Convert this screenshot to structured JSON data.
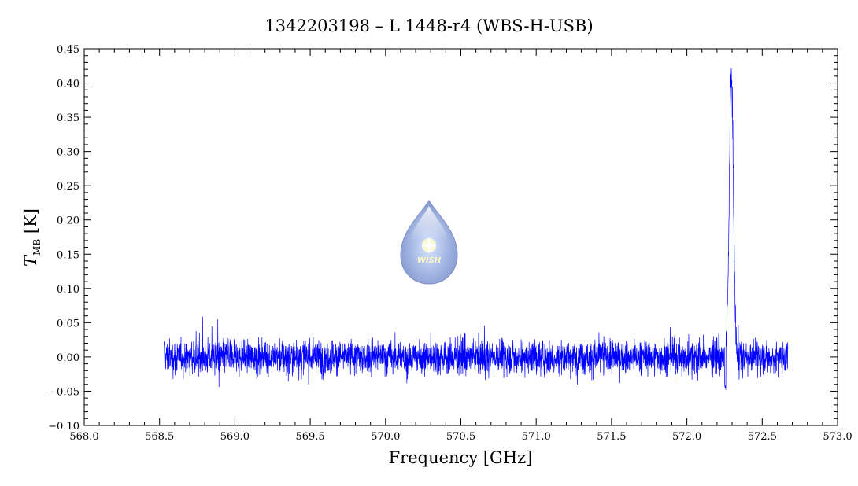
{
  "chart_data": {
    "type": "line",
    "title": "1342203198 – L 1448-r4 (WBS-H-USB)",
    "xlabel": "Frequency [GHz]",
    "ylabel_main": "T",
    "ylabel_sub": "MB",
    "ylabel_unit": "[K]",
    "xlim": [
      568.0,
      573.0
    ],
    "ylim": [
      -0.1,
      0.45
    ],
    "xticks": [
      "568.0",
      "568.5",
      "569.0",
      "569.5",
      "570.0",
      "570.5",
      "571.0",
      "571.5",
      "572.0",
      "572.5",
      "573.0"
    ],
    "yticks": [
      "−0.10",
      "−0.05",
      "0.00",
      "0.05",
      "0.10",
      "0.15",
      "0.20",
      "0.25",
      "0.30",
      "0.35",
      "0.40",
      "0.45"
    ],
    "grid": false,
    "series": [
      {
        "color": "#0000ff",
        "x_range": [
          568.53,
          572.67
        ],
        "baseline": 0.0,
        "noise_rms": 0.018,
        "line_center": 572.295,
        "line_peak": 0.41,
        "line_fwhm": 0.032,
        "absorption_dip": {
          "x": 572.255,
          "y": -0.05
        }
      }
    ],
    "logo": {
      "text": "WISH",
      "icon": "water-drop-star-icon",
      "color": "#a8b8e0"
    }
  }
}
